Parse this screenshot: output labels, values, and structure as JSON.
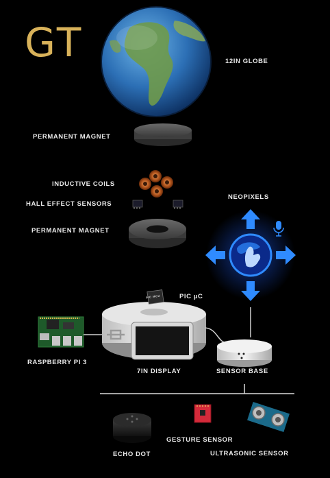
{
  "logo": "GT",
  "labels": {
    "globe": "12IN GLOBE",
    "top_magnet": "PERMANENT MAGNET",
    "coils": "INDUCTIVE COILS",
    "hall": "HALL EFFECT SENSORS",
    "bottom_magnet": "PERMANENT MAGNET",
    "neopixels": "NEOPIXELS",
    "pic": "PIC µC",
    "pic_chip": "PIC MCU",
    "rpi": "RASPBERRY PI 3",
    "display": "7IN DISPLAY",
    "sensor_base": "SENSOR BASE",
    "gesture": "GESTURE SENSOR",
    "echo": "ECHO DOT",
    "ultrasonic": "ULTRASONIC SENSOR"
  },
  "colors": {
    "logo": "#d8b25a",
    "neopixel_blue": "#2f8bff",
    "coil_copper": "#c46a2a",
    "gesture_red": "#d42a3a"
  }
}
